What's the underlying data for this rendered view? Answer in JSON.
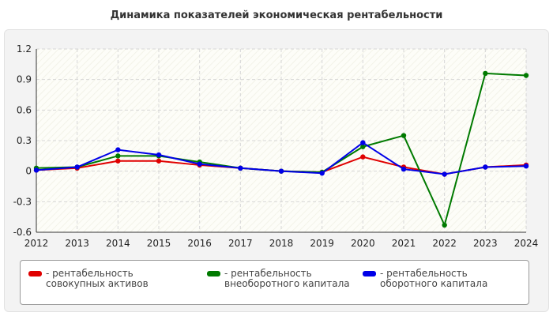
{
  "chart_data": {
    "type": "line",
    "title": "Динамика показателей экономическая рентабельности",
    "xlabel": "",
    "ylabel": "",
    "x": [
      "2012",
      "2013",
      "2014",
      "2015",
      "2016",
      "2017",
      "2018",
      "2019",
      "2020",
      "2021",
      "2022",
      "2023",
      "2024"
    ],
    "ylim": [
      -0.6,
      1.2
    ],
    "yticks": [
      "1.2",
      "0.9",
      "0.6",
      "0.3",
      "0",
      "-0.3",
      "-0.6"
    ],
    "grid": true,
    "legend_position": "bottom",
    "series": [
      {
        "name": "рентабельность совокупных активов",
        "color": "#e00000",
        "values": [
          0.01,
          0.03,
          0.1,
          0.1,
          0.06,
          0.03,
          0.0,
          -0.01,
          0.14,
          0.04,
          -0.03,
          0.04,
          0.06
        ]
      },
      {
        "name": "рентабельность внеоборотного капитала",
        "color": "#007a00",
        "values": [
          0.03,
          0.04,
          0.15,
          0.15,
          0.09,
          0.03,
          0.0,
          -0.01,
          0.24,
          0.35,
          -0.53,
          0.96,
          0.94
        ]
      },
      {
        "name": "рентабельность оборотного капитала",
        "color": "#0000e8",
        "values": [
          0.01,
          0.04,
          0.21,
          0.16,
          0.07,
          0.03,
          0.0,
          -0.02,
          0.28,
          0.02,
          -0.03,
          0.04,
          0.05
        ]
      }
    ]
  }
}
